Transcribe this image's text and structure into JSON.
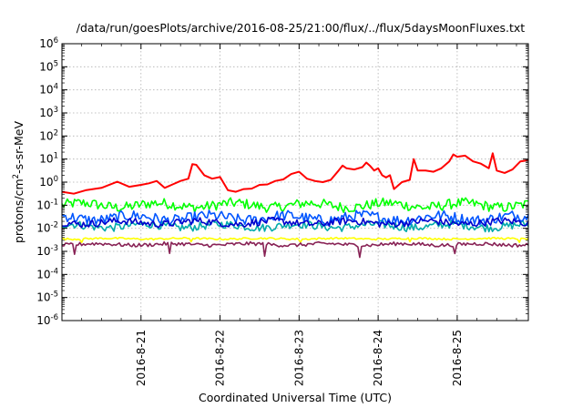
{
  "chart_data": {
    "type": "line",
    "title": "/data/run/goesPlots/archive/2016-08-25/21:00/flux/../flux/5daysMoonFluxes.txt",
    "xlabel": "Coordinated Universal Time (UTC)",
    "ylabel": {
      "prefix": "protons/cm",
      "sup": "2",
      "suffix": "-s-sr-MeV"
    },
    "y_scale": "log",
    "ylim_exponents": [
      -6,
      6
    ],
    "y_tick_exponents": [
      -6,
      -5,
      -4,
      -3,
      -2,
      -1,
      0,
      1,
      2,
      3,
      4,
      5,
      6
    ],
    "y_tick_base": "10",
    "x_range_days": [
      0,
      5.9
    ],
    "x_ticks": [
      {
        "label": "2016-8-21",
        "day": 1
      },
      {
        "label": "2016-8-22",
        "day": 2
      },
      {
        "label": "2016-8-23",
        "day": 3
      },
      {
        "label": "2016-8-24",
        "day": 4
      },
      {
        "label": "2016-8-25",
        "day": 5
      }
    ],
    "grid": true,
    "legend": "none",
    "series": [
      {
        "color": "#ff0000",
        "log_values": [
          [
            0.0,
            -0.42
          ],
          [
            0.15,
            -0.5
          ],
          [
            0.3,
            -0.35
          ],
          [
            0.5,
            -0.25
          ],
          [
            0.7,
            0.02
          ],
          [
            0.85,
            -0.2
          ],
          [
            1.0,
            -0.12
          ],
          [
            1.1,
            -0.05
          ],
          [
            1.2,
            0.05
          ],
          [
            1.3,
            -0.25
          ],
          [
            1.4,
            -0.1
          ],
          [
            1.5,
            0.05
          ],
          [
            1.6,
            0.15
          ],
          [
            1.65,
            0.78
          ],
          [
            1.7,
            0.75
          ],
          [
            1.8,
            0.3
          ],
          [
            1.9,
            0.15
          ],
          [
            2.0,
            0.22
          ],
          [
            2.1,
            -0.35
          ],
          [
            2.2,
            -0.42
          ],
          [
            2.3,
            -0.3
          ],
          [
            2.4,
            -0.28
          ],
          [
            2.5,
            -0.12
          ],
          [
            2.6,
            -0.1
          ],
          [
            2.7,
            0.05
          ],
          [
            2.8,
            0.12
          ],
          [
            2.9,
            0.35
          ],
          [
            3.0,
            0.45
          ],
          [
            3.05,
            0.3
          ],
          [
            3.1,
            0.15
          ],
          [
            3.2,
            0.05
          ],
          [
            3.3,
            0.0
          ],
          [
            3.4,
            0.1
          ],
          [
            3.5,
            0.5
          ],
          [
            3.55,
            0.72
          ],
          [
            3.6,
            0.6
          ],
          [
            3.7,
            0.55
          ],
          [
            3.8,
            0.65
          ],
          [
            3.85,
            0.85
          ],
          [
            3.9,
            0.7
          ],
          [
            3.95,
            0.5
          ],
          [
            4.0,
            0.6
          ],
          [
            4.05,
            0.3
          ],
          [
            4.1,
            0.2
          ],
          [
            4.15,
            0.3
          ],
          [
            4.2,
            -0.3
          ],
          [
            4.3,
            0.0
          ],
          [
            4.4,
            0.1
          ],
          [
            4.45,
            1.0
          ],
          [
            4.5,
            0.5
          ],
          [
            4.6,
            0.5
          ],
          [
            4.7,
            0.45
          ],
          [
            4.8,
            0.6
          ],
          [
            4.9,
            0.9
          ],
          [
            4.95,
            1.2
          ],
          [
            5.0,
            1.1
          ],
          [
            5.1,
            1.15
          ],
          [
            5.2,
            0.9
          ],
          [
            5.3,
            0.8
          ],
          [
            5.4,
            0.6
          ],
          [
            5.45,
            1.25
          ],
          [
            5.5,
            0.5
          ],
          [
            5.6,
            0.4
          ],
          [
            5.7,
            0.55
          ],
          [
            5.8,
            0.9
          ],
          [
            5.9,
            0.95
          ]
        ]
      }
    ],
    "noisy_series": [
      {
        "color": "#00ff00",
        "base_log": -1.0,
        "amp": 0.28
      },
      {
        "color": "#00aaaa",
        "base_log": -1.9,
        "amp": 0.22
      },
      {
        "color": "#0055ff",
        "base_log": -1.55,
        "amp": 0.3
      },
      {
        "color": "#0000cc",
        "base_log": -1.75,
        "amp": 0.2
      },
      {
        "color": "#ffff00",
        "base_log": -2.45,
        "amp": 0.05
      },
      {
        "color": "#882255",
        "base_log": -2.7,
        "amp": 0.1
      }
    ]
  }
}
